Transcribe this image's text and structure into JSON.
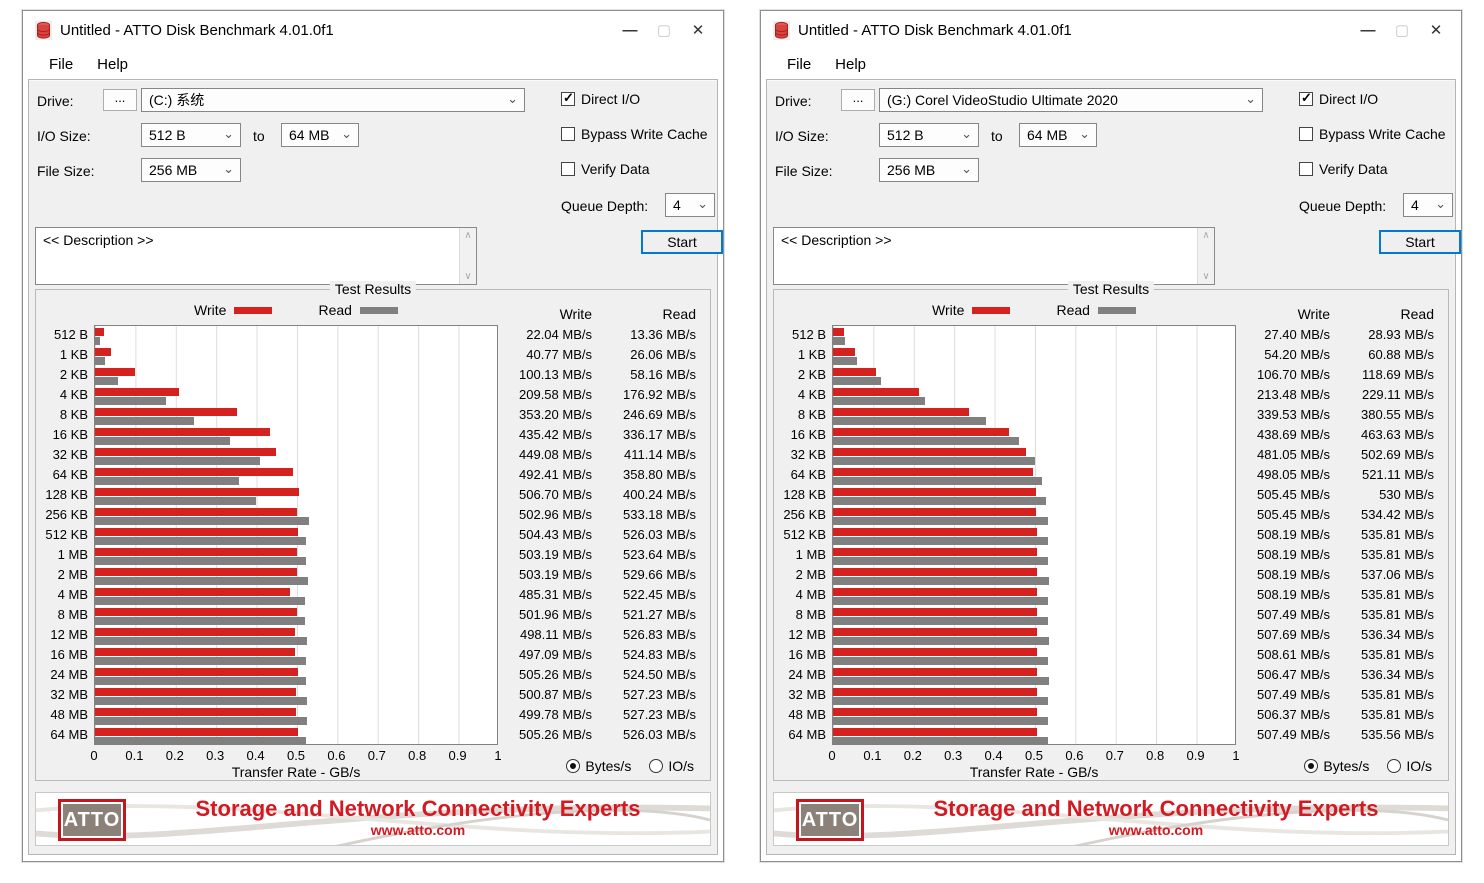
{
  "colors": {
    "write_bar": "#d5221e",
    "read_bar": "#808080",
    "start_border": "#0078d7",
    "banner_red": "#d31921",
    "logo_inner": "#8b8178",
    "client_bg": "#f0f0f0"
  },
  "icons": {
    "app": "red-disk-stack",
    "minimize": "—",
    "maximize": "▢",
    "close": "✕",
    "dropdown": "⌄",
    "scroll_up": "∧",
    "scroll_down": "∨"
  },
  "banner": {
    "logo": "ATTO",
    "headline": "Storage and Network Connectivity Experts",
    "url": "www.atto.com"
  },
  "windows": [
    {
      "title": "Untitled - ATTO Disk Benchmark 4.01.0f1",
      "menu": {
        "file": "File",
        "help": "Help"
      },
      "controls": {
        "drive_label": "Drive:",
        "browse_label": "...",
        "drive_value": "(C:) 系统",
        "direct_io_label": "Direct I/O",
        "io_size_label": "I/O Size:",
        "io_from_value": "512 B",
        "to_label": "to",
        "io_to_value": "64 MB",
        "bypass_label": "Bypass Write Cache",
        "file_size_label": "File Size:",
        "file_size_value": "256 MB",
        "verify_label": "Verify Data",
        "queue_label": "Queue Depth:",
        "queue_value": "4",
        "description_placeholder": "<< Description >>",
        "start_label": "Start"
      },
      "results": {
        "group_title": "Test Results",
        "legend_write": "Write",
        "legend_read": "Read",
        "col_write": "Write",
        "col_read": "Read",
        "radio_bytes": "Bytes/s",
        "radio_io": "IO/s"
      },
      "chart_data": {
        "type": "bar",
        "orientation": "horizontal",
        "title": "Test Results",
        "xlabel": "Transfer Rate - GB/s",
        "xlim": [
          0,
          1
        ],
        "x_ticks": [
          "0",
          "0.1",
          "0.2",
          "0.3",
          "0.4",
          "0.5",
          "0.6",
          "0.7",
          "0.8",
          "0.9",
          "1"
        ],
        "grid": true,
        "legend_position": "top",
        "categories": [
          "512 B",
          "1 KB",
          "2 KB",
          "4 KB",
          "8 KB",
          "16 KB",
          "32 KB",
          "64 KB",
          "128 KB",
          "256 KB",
          "512 KB",
          "1 MB",
          "2 MB",
          "4 MB",
          "8 MB",
          "12 MB",
          "16 MB",
          "24 MB",
          "32 MB",
          "48 MB",
          "64 MB"
        ],
        "unit": "MB/s",
        "series": [
          {
            "name": "Write",
            "color": "#d5221e",
            "values": [
              22.04,
              40.77,
              100.13,
              209.58,
              353.2,
              435.42,
              449.08,
              492.41,
              506.7,
              502.96,
              504.43,
              503.19,
              503.19,
              485.31,
              501.96,
              498.11,
              497.09,
              505.26,
              500.87,
              499.78,
              505.26
            ],
            "labels": [
              "22.04 MB/s",
              "40.77 MB/s",
              "100.13 MB/s",
              "209.58 MB/s",
              "353.20 MB/s",
              "435.42 MB/s",
              "449.08 MB/s",
              "492.41 MB/s",
              "506.70 MB/s",
              "502.96 MB/s",
              "504.43 MB/s",
              "503.19 MB/s",
              "503.19 MB/s",
              "485.31 MB/s",
              "501.96 MB/s",
              "498.11 MB/s",
              "497.09 MB/s",
              "505.26 MB/s",
              "500.87 MB/s",
              "499.78 MB/s",
              "505.26 MB/s"
            ]
          },
          {
            "name": "Read",
            "color": "#808080",
            "values": [
              13.36,
              26.06,
              58.16,
              176.92,
              246.69,
              336.17,
              411.14,
              358.8,
              400.24,
              533.18,
              526.03,
              523.64,
              529.66,
              522.45,
              521.27,
              526.83,
              524.83,
              524.5,
              527.23,
              527.23,
              526.03
            ],
            "labels": [
              "13.36 MB/s",
              "26.06 MB/s",
              "58.16 MB/s",
              "176.92 MB/s",
              "246.69 MB/s",
              "336.17 MB/s",
              "411.14 MB/s",
              "358.80 MB/s",
              "400.24 MB/s",
              "533.18 MB/s",
              "526.03 MB/s",
              "523.64 MB/s",
              "529.66 MB/s",
              "522.45 MB/s",
              "521.27 MB/s",
              "526.83 MB/s",
              "524.83 MB/s",
              "524.50 MB/s",
              "527.23 MB/s",
              "527.23 MB/s",
              "526.03 MB/s"
            ]
          }
        ]
      }
    },
    {
      "title": "Untitled - ATTO Disk Benchmark 4.01.0f1",
      "menu": {
        "file": "File",
        "help": "Help"
      },
      "controls": {
        "drive_label": "Drive:",
        "browse_label": "...",
        "drive_value": "(G:) Corel VideoStudio Ultimate 2020",
        "direct_io_label": "Direct I/O",
        "io_size_label": "I/O Size:",
        "io_from_value": "512 B",
        "to_label": "to",
        "io_to_value": "64 MB",
        "bypass_label": "Bypass Write Cache",
        "file_size_label": "File Size:",
        "file_size_value": "256 MB",
        "verify_label": "Verify Data",
        "queue_label": "Queue Depth:",
        "queue_value": "4",
        "description_placeholder": "<< Description >>",
        "start_label": "Start"
      },
      "results": {
        "group_title": "Test Results",
        "legend_write": "Write",
        "legend_read": "Read",
        "col_write": "Write",
        "col_read": "Read",
        "radio_bytes": "Bytes/s",
        "radio_io": "IO/s"
      },
      "chart_data": {
        "type": "bar",
        "orientation": "horizontal",
        "title": "Test Results",
        "xlabel": "Transfer Rate - GB/s",
        "xlim": [
          0,
          1
        ],
        "x_ticks": [
          "0",
          "0.1",
          "0.2",
          "0.3",
          "0.4",
          "0.5",
          "0.6",
          "0.7",
          "0.8",
          "0.9",
          "1"
        ],
        "grid": true,
        "legend_position": "top",
        "categories": [
          "512 B",
          "1 KB",
          "2 KB",
          "4 KB",
          "8 KB",
          "16 KB",
          "32 KB",
          "64 KB",
          "128 KB",
          "256 KB",
          "512 KB",
          "1 MB",
          "2 MB",
          "4 MB",
          "8 MB",
          "12 MB",
          "16 MB",
          "24 MB",
          "32 MB",
          "48 MB",
          "64 MB"
        ],
        "unit": "MB/s",
        "series": [
          {
            "name": "Write",
            "color": "#d5221e",
            "values": [
              27.4,
              54.2,
              106.7,
              213.48,
              339.53,
              438.69,
              481.05,
              498.05,
              505.45,
              505.45,
              508.19,
              508.19,
              508.19,
              508.19,
              507.49,
              507.69,
              508.61,
              506.47,
              507.49,
              506.37,
              507.49
            ],
            "labels": [
              "27.40 MB/s",
              "54.20 MB/s",
              "106.70 MB/s",
              "213.48 MB/s",
              "339.53 MB/s",
              "438.69 MB/s",
              "481.05 MB/s",
              "498.05 MB/s",
              "505.45 MB/s",
              "505.45 MB/s",
              "508.19 MB/s",
              "508.19 MB/s",
              "508.19 MB/s",
              "508.19 MB/s",
              "507.49 MB/s",
              "507.69 MB/s",
              "508.61 MB/s",
              "506.47 MB/s",
              "507.49 MB/s",
              "506.37 MB/s",
              "507.49 MB/s"
            ]
          },
          {
            "name": "Read",
            "color": "#808080",
            "values": [
              28.93,
              60.88,
              118.69,
              229.11,
              380.55,
              463.63,
              502.69,
              521.11,
              530,
              534.42,
              535.81,
              535.81,
              537.06,
              535.81,
              535.81,
              536.34,
              535.81,
              536.34,
              535.81,
              535.81,
              535.56
            ],
            "labels": [
              "28.93 MB/s",
              "60.88 MB/s",
              "118.69 MB/s",
              "229.11 MB/s",
              "380.55 MB/s",
              "463.63 MB/s",
              "502.69 MB/s",
              "521.11 MB/s",
              "530 MB/s",
              "534.42 MB/s",
              "535.81 MB/s",
              "535.81 MB/s",
              "537.06 MB/s",
              "535.81 MB/s",
              "535.81 MB/s",
              "536.34 MB/s",
              "535.81 MB/s",
              "536.34 MB/s",
              "535.81 MB/s",
              "535.81 MB/s",
              "535.56 MB/s"
            ]
          }
        ]
      }
    }
  ]
}
